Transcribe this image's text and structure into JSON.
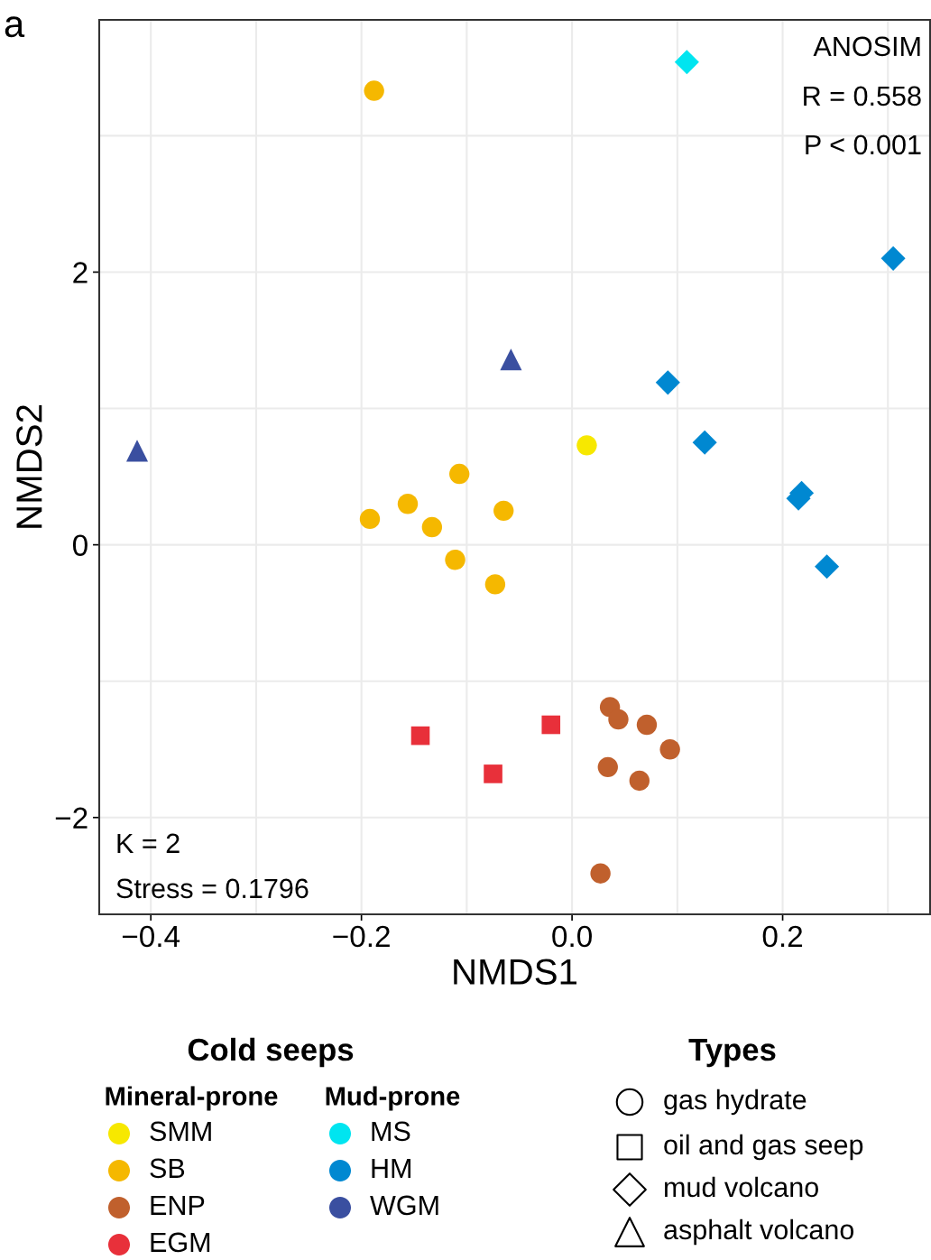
{
  "chart_data": {
    "type": "scatter",
    "xlabel": "NMDS1",
    "ylabel": "NMDS2",
    "xlim": [
      -0.449,
      0.34
    ],
    "ylim": [
      -2.71,
      3.85
    ],
    "xticks": [
      {
        "value": -0.4,
        "label": "−0.4"
      },
      {
        "value": -0.3,
        "label": null
      },
      {
        "value": -0.2,
        "label": "−0.2"
      },
      {
        "value": -0.1,
        "label": null
      },
      {
        "value": 0,
        "label": "0.0"
      },
      {
        "value": 0.1,
        "label": null
      },
      0.2,
      {
        "value": 0.3,
        "label": null
      }
    ],
    "yticks": [
      {
        "value": -2,
        "label": "−2"
      },
      {
        "value": -1,
        "label": null
      },
      0,
      {
        "value": 1,
        "label": null
      },
      2,
      {
        "value": 3,
        "label": null
      }
    ],
    "grid": true,
    "legend": "bottom",
    "legend_title": "Cold seeps",
    "series": [
      {
        "name": "SMM",
        "color": "#f7e800",
        "marker": "circle",
        "x": [
          0.014
        ],
        "values": [
          0.73
        ]
      },
      {
        "name": "SB",
        "color": "#f5b800",
        "marker": "circle",
        "x": [
          -0.188,
          -0.107,
          -0.156,
          -0.192,
          -0.133,
          -0.065,
          -0.111,
          -0.073
        ],
        "values": [
          3.33,
          0.52,
          0.3,
          0.19,
          0.13,
          0.25,
          -0.11,
          -0.29
        ]
      },
      {
        "name": "ENP",
        "color": "#c0602d",
        "marker": "circle",
        "x": [
          0.036,
          0.044,
          0.071,
          0.093,
          0.034,
          0.064,
          0.027
        ],
        "values": [
          -1.19,
          -1.28,
          -1.32,
          -1.5,
          -1.63,
          -1.73,
          -2.41
        ]
      },
      {
        "name": "EGM",
        "color": "#e8303a",
        "marker": "square",
        "x": [
          -0.144,
          -0.02,
          -0.075
        ],
        "values": [
          -1.4,
          -1.32,
          -1.68
        ]
      },
      {
        "name": "MS",
        "color": "#00e5f0",
        "marker": "diamond",
        "x": [
          0.109
        ],
        "values": [
          3.54
        ]
      },
      {
        "name": "HM",
        "color": "#0088d1",
        "marker": "diamond",
        "x": [
          0.305,
          0.091,
          0.126,
          0.218,
          0.215,
          0.242
        ],
        "values": [
          2.1,
          1.19,
          0.75,
          0.38,
          0.34,
          -0.16
        ]
      },
      {
        "name": "WGM",
        "color": "#3a4fa0",
        "marker": "triangle",
        "x": [
          -0.058,
          -0.413
        ],
        "values": [
          1.36,
          0.69
        ]
      }
    ],
    "annotations": [
      "a",
      "ANOSIM",
      "R = 0.558",
      "P < 0.001",
      "K = 2",
      "Stress = 0.1796",
      "Mineral-prone",
      "Mud-prone",
      "Types",
      "gas hydrate",
      "oil and gas seep",
      "mud volcano",
      "asphalt volcano"
    ]
  }
}
